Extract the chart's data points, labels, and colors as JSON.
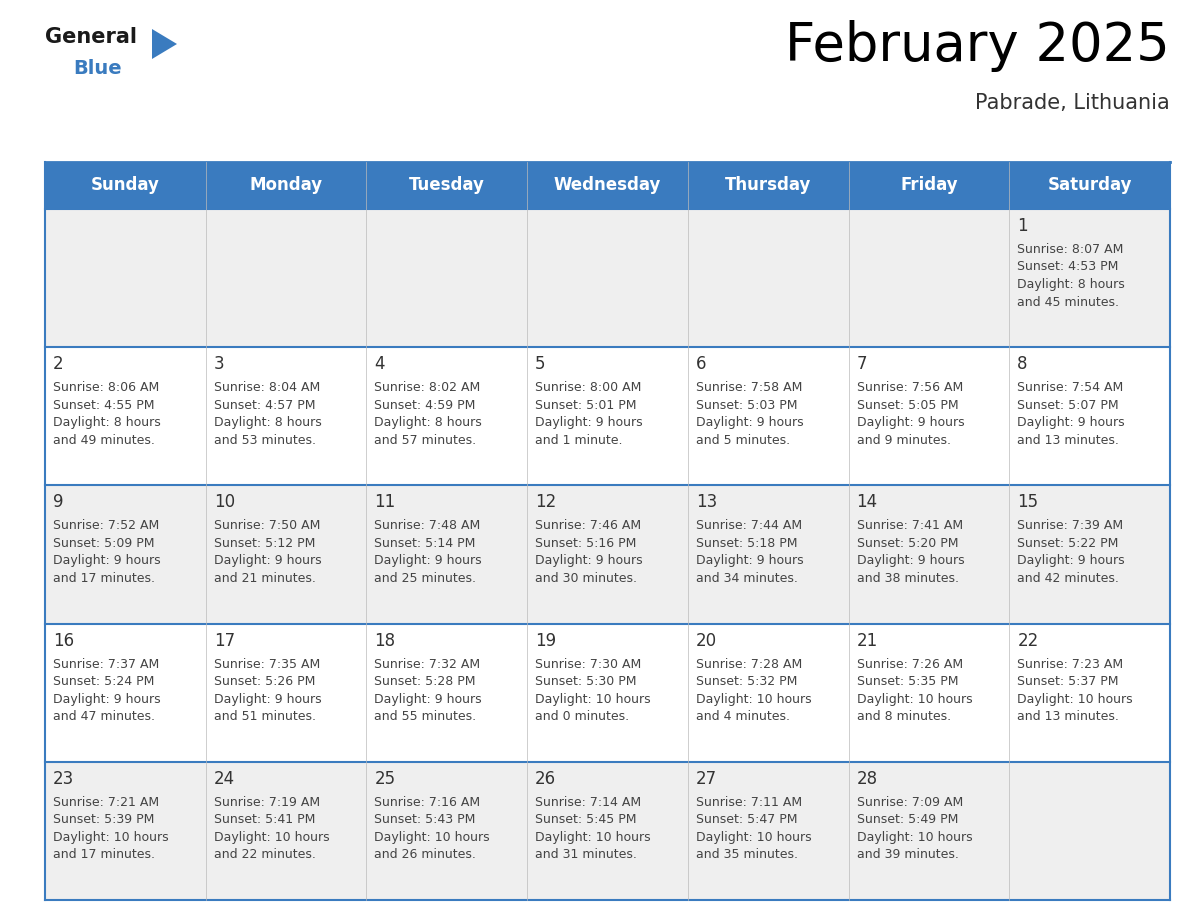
{
  "title": "February 2025",
  "subtitle": "Pabrade, Lithuania",
  "header_bg_color": "#3a7bbf",
  "header_text_color": "#ffffff",
  "row_bg_even": "#efefef",
  "row_bg_odd": "#ffffff",
  "border_color": "#3a7bbf",
  "text_color": "#333333",
  "info_text_color": "#444444",
  "day_names": [
    "Sunday",
    "Monday",
    "Tuesday",
    "Wednesday",
    "Thursday",
    "Friday",
    "Saturday"
  ],
  "days": [
    {
      "day": 1,
      "col": 6,
      "row": 0,
      "sunrise": "8:07 AM",
      "sunset": "4:53 PM",
      "daylight": "8 hours and 45 minutes."
    },
    {
      "day": 2,
      "col": 0,
      "row": 1,
      "sunrise": "8:06 AM",
      "sunset": "4:55 PM",
      "daylight": "8 hours and 49 minutes."
    },
    {
      "day": 3,
      "col": 1,
      "row": 1,
      "sunrise": "8:04 AM",
      "sunset": "4:57 PM",
      "daylight": "8 hours and 53 minutes."
    },
    {
      "day": 4,
      "col": 2,
      "row": 1,
      "sunrise": "8:02 AM",
      "sunset": "4:59 PM",
      "daylight": "8 hours and 57 minutes."
    },
    {
      "day": 5,
      "col": 3,
      "row": 1,
      "sunrise": "8:00 AM",
      "sunset": "5:01 PM",
      "daylight": "9 hours and 1 minute."
    },
    {
      "day": 6,
      "col": 4,
      "row": 1,
      "sunrise": "7:58 AM",
      "sunset": "5:03 PM",
      "daylight": "9 hours and 5 minutes."
    },
    {
      "day": 7,
      "col": 5,
      "row": 1,
      "sunrise": "7:56 AM",
      "sunset": "5:05 PM",
      "daylight": "9 hours and 9 minutes."
    },
    {
      "day": 8,
      "col": 6,
      "row": 1,
      "sunrise": "7:54 AM",
      "sunset": "5:07 PM",
      "daylight": "9 hours and 13 minutes."
    },
    {
      "day": 9,
      "col": 0,
      "row": 2,
      "sunrise": "7:52 AM",
      "sunset": "5:09 PM",
      "daylight": "9 hours and 17 minutes."
    },
    {
      "day": 10,
      "col": 1,
      "row": 2,
      "sunrise": "7:50 AM",
      "sunset": "5:12 PM",
      "daylight": "9 hours and 21 minutes."
    },
    {
      "day": 11,
      "col": 2,
      "row": 2,
      "sunrise": "7:48 AM",
      "sunset": "5:14 PM",
      "daylight": "9 hours and 25 minutes."
    },
    {
      "day": 12,
      "col": 3,
      "row": 2,
      "sunrise": "7:46 AM",
      "sunset": "5:16 PM",
      "daylight": "9 hours and 30 minutes."
    },
    {
      "day": 13,
      "col": 4,
      "row": 2,
      "sunrise": "7:44 AM",
      "sunset": "5:18 PM",
      "daylight": "9 hours and 34 minutes."
    },
    {
      "day": 14,
      "col": 5,
      "row": 2,
      "sunrise": "7:41 AM",
      "sunset": "5:20 PM",
      "daylight": "9 hours and 38 minutes."
    },
    {
      "day": 15,
      "col": 6,
      "row": 2,
      "sunrise": "7:39 AM",
      "sunset": "5:22 PM",
      "daylight": "9 hours and 42 minutes."
    },
    {
      "day": 16,
      "col": 0,
      "row": 3,
      "sunrise": "7:37 AM",
      "sunset": "5:24 PM",
      "daylight": "9 hours and 47 minutes."
    },
    {
      "day": 17,
      "col": 1,
      "row": 3,
      "sunrise": "7:35 AM",
      "sunset": "5:26 PM",
      "daylight": "9 hours and 51 minutes."
    },
    {
      "day": 18,
      "col": 2,
      "row": 3,
      "sunrise": "7:32 AM",
      "sunset": "5:28 PM",
      "daylight": "9 hours and 55 minutes."
    },
    {
      "day": 19,
      "col": 3,
      "row": 3,
      "sunrise": "7:30 AM",
      "sunset": "5:30 PM",
      "daylight": "10 hours and 0 minutes."
    },
    {
      "day": 20,
      "col": 4,
      "row": 3,
      "sunrise": "7:28 AM",
      "sunset": "5:32 PM",
      "daylight": "10 hours and 4 minutes."
    },
    {
      "day": 21,
      "col": 5,
      "row": 3,
      "sunrise": "7:26 AM",
      "sunset": "5:35 PM",
      "daylight": "10 hours and 8 minutes."
    },
    {
      "day": 22,
      "col": 6,
      "row": 3,
      "sunrise": "7:23 AM",
      "sunset": "5:37 PM",
      "daylight": "10 hours and 13 minutes."
    },
    {
      "day": 23,
      "col": 0,
      "row": 4,
      "sunrise": "7:21 AM",
      "sunset": "5:39 PM",
      "daylight": "10 hours and 17 minutes."
    },
    {
      "day": 24,
      "col": 1,
      "row": 4,
      "sunrise": "7:19 AM",
      "sunset": "5:41 PM",
      "daylight": "10 hours and 22 minutes."
    },
    {
      "day": 25,
      "col": 2,
      "row": 4,
      "sunrise": "7:16 AM",
      "sunset": "5:43 PM",
      "daylight": "10 hours and 26 minutes."
    },
    {
      "day": 26,
      "col": 3,
      "row": 4,
      "sunrise": "7:14 AM",
      "sunset": "5:45 PM",
      "daylight": "10 hours and 31 minutes."
    },
    {
      "day": 27,
      "col": 4,
      "row": 4,
      "sunrise": "7:11 AM",
      "sunset": "5:47 PM",
      "daylight": "10 hours and 35 minutes."
    },
    {
      "day": 28,
      "col": 5,
      "row": 4,
      "sunrise": "7:09 AM",
      "sunset": "5:49 PM",
      "daylight": "10 hours and 39 minutes."
    }
  ],
  "num_rows": 5,
  "num_cols": 7,
  "title_fontsize": 38,
  "subtitle_fontsize": 15,
  "header_fontsize": 12,
  "day_num_fontsize": 12,
  "info_fontsize": 9
}
